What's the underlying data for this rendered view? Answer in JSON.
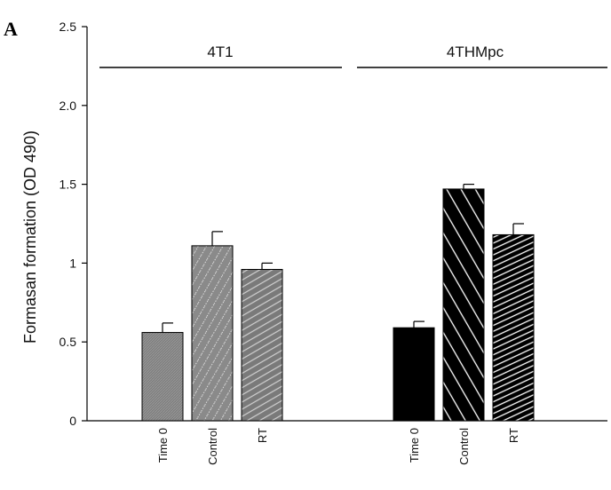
{
  "panel_label": "A",
  "chart_data": {
    "type": "bar",
    "ylabel": "Formasan formation  (OD 490)",
    "ylim": [
      0,
      2.5
    ],
    "yticks": [
      "0",
      "0.5",
      "1",
      "1.5",
      "2.0",
      "2.5"
    ],
    "grid": false,
    "groups": [
      {
        "name": "4T1",
        "bars": [
          {
            "category": "Time 0",
            "value": 0.56,
            "error": 0.06,
            "fill": "#7f7f7f",
            "pattern": "dense-grey"
          },
          {
            "category": "Control",
            "value": 1.11,
            "error": 0.09,
            "fill": "#8a8a8a",
            "pattern": "dotted-grey"
          },
          {
            "category": "RT",
            "value": 0.96,
            "error": 0.04,
            "fill": "#7a7a7a",
            "pattern": "grey-diagonal"
          }
        ]
      },
      {
        "name": "4THMpc",
        "bars": [
          {
            "category": "Time 0",
            "value": 0.59,
            "error": 0.04,
            "fill": "#000000",
            "pattern": "solid-black"
          },
          {
            "category": "Control",
            "value": 1.47,
            "error": 0.03,
            "fill": "#000000",
            "pattern": "white-back-diagonal"
          },
          {
            "category": "RT",
            "value": 1.18,
            "error": 0.07,
            "fill": "#000000",
            "pattern": "white-forward-diagonal"
          }
        ]
      }
    ]
  }
}
